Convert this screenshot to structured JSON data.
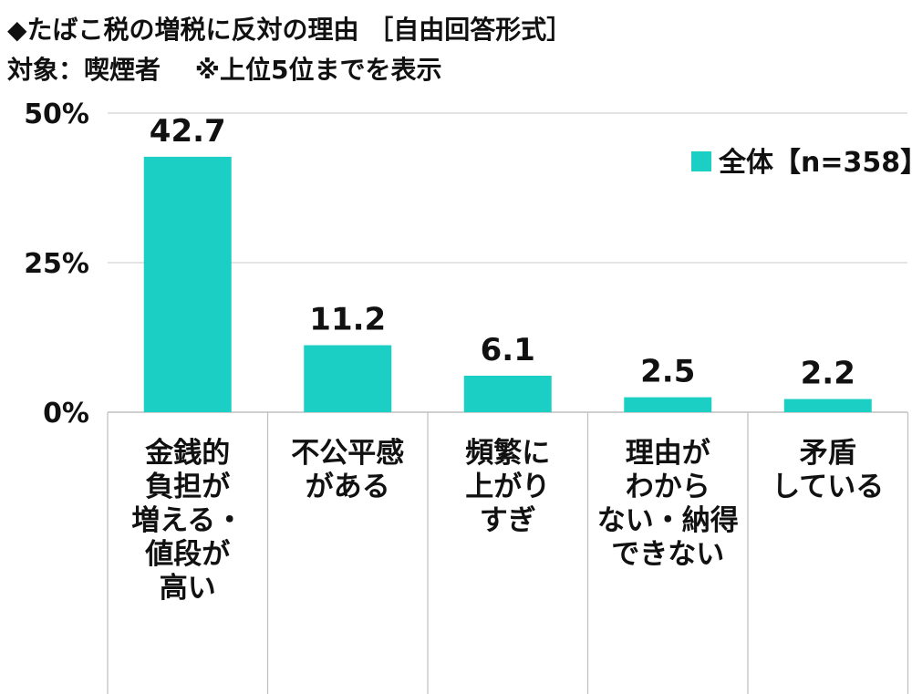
{
  "title_line1": "◆たばこ税の増税に反対の理由 ［自由回答形式］",
  "title_line2": "対象：喫煙者　 ※上位5位までを表示",
  "chart_data": {
    "type": "bar",
    "categories": [
      [
        "金銭的",
        "負担が",
        "増える・",
        "値段が",
        "高い"
      ],
      [
        "不公平感",
        "がある"
      ],
      [
        "頻繁に",
        "上がり",
        "すぎ"
      ],
      [
        "理由が",
        "わから",
        "ない・納得",
        "できない"
      ],
      [
        "矛盾",
        "している"
      ]
    ],
    "series": [
      {
        "name": "全体【n=358】",
        "values": [
          42.7,
          11.2,
          6.1,
          2.5,
          2.2
        ]
      }
    ],
    "data_labels": [
      "42.7",
      "11.2",
      "6.1",
      "2.5",
      "2.2"
    ],
    "ytick_labels": [
      "50%",
      "25%",
      "0%"
    ],
    "yticks": [
      50,
      25,
      0
    ],
    "ylim": [
      0,
      50
    ],
    "grid": true,
    "legend_position": "top-right",
    "colors": {
      "bar": "#1ccfc4",
      "grid": "#d4d4d4",
      "axis": "#bfbfbf"
    }
  }
}
